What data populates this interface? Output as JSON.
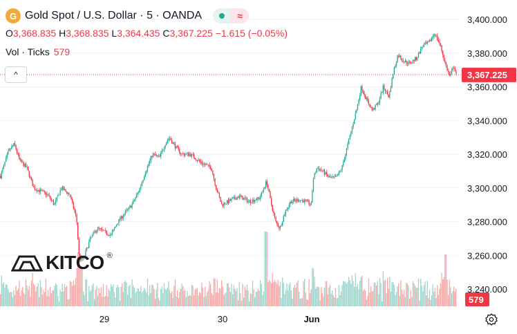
{
  "header": {
    "symbol_icon": "gold-coin-icon",
    "symbol_glyph": "G",
    "title": "Gold Spot / U.S. Dollar · 5 · OANDA",
    "wave_glyph": "≈"
  },
  "ohlc": {
    "o_label": "O",
    "o": "3,368.835",
    "h_label": "H",
    "h": "3,368.835",
    "l_label": "L",
    "l": "3,364.435",
    "c_label": "C",
    "c": "3,367.225",
    "change": "−1.615 (−0.05%)"
  },
  "volume": {
    "label": "Vol · Ticks",
    "value": "579"
  },
  "collapse_glyph": "^",
  "logo": {
    "text": "KITCO",
    "reg": "®"
  },
  "colors": {
    "up": "#22ab94",
    "down": "#f23645",
    "up_vol": "#9ed6cd",
    "down_vol": "#f7a9a7"
  },
  "chart_data": {
    "type": "candlestick",
    "y_ticks": [
      "3,400.000",
      "3,380.000",
      "3,360.000",
      "3,340.000",
      "3,320.000",
      "3,300.000",
      "3,280.000",
      "3,260.000",
      "3,240.000"
    ],
    "y_tick_values": [
      3400,
      3380,
      3360,
      3340,
      3320,
      3300,
      3280,
      3260,
      3240
    ],
    "ylim": [
      3230,
      3405
    ],
    "x_ticks": [
      "29",
      "30",
      "Jun"
    ],
    "last_price_label": "3,367.225",
    "last_price": 3367.225,
    "last_volume_label": "579",
    "price_path": [
      [
        0,
        3307
      ],
      [
        12,
        3322
      ],
      [
        20,
        3326
      ],
      [
        28,
        3316
      ],
      [
        38,
        3312
      ],
      [
        48,
        3300
      ],
      [
        58,
        3298
      ],
      [
        68,
        3296
      ],
      [
        78,
        3290
      ],
      [
        88,
        3300
      ],
      [
        100,
        3296
      ],
      [
        110,
        3282
      ],
      [
        114,
        3258
      ],
      [
        120,
        3258
      ],
      [
        130,
        3270
      ],
      [
        140,
        3276
      ],
      [
        150,
        3274
      ],
      [
        160,
        3272
      ],
      [
        170,
        3280
      ],
      [
        180,
        3285
      ],
      [
        190,
        3290
      ],
      [
        200,
        3298
      ],
      [
        210,
        3310
      ],
      [
        220,
        3320
      ],
      [
        230,
        3318
      ],
      [
        238,
        3326
      ],
      [
        244,
        3330
      ],
      [
        252,
        3325
      ],
      [
        262,
        3320
      ],
      [
        275,
        3320
      ],
      [
        290,
        3315
      ],
      [
        305,
        3312
      ],
      [
        312,
        3300
      ],
      [
        320,
        3290
      ],
      [
        330,
        3292
      ],
      [
        345,
        3295
      ],
      [
        360,
        3292
      ],
      [
        375,
        3294
      ],
      [
        385,
        3304
      ],
      [
        392,
        3290
      ],
      [
        398,
        3280
      ],
      [
        404,
        3276
      ],
      [
        412,
        3286
      ],
      [
        420,
        3292
      ],
      [
        432,
        3293
      ],
      [
        442,
        3292
      ],
      [
        450,
        3290
      ],
      [
        452,
        3305
      ],
      [
        458,
        3312
      ],
      [
        466,
        3310
      ],
      [
        476,
        3306
      ],
      [
        486,
        3306
      ],
      [
        494,
        3312
      ],
      [
        502,
        3325
      ],
      [
        510,
        3338
      ],
      [
        516,
        3348
      ],
      [
        522,
        3360
      ],
      [
        530,
        3352
      ],
      [
        538,
        3346
      ],
      [
        546,
        3350
      ],
      [
        554,
        3360
      ],
      [
        562,
        3354
      ],
      [
        568,
        3368
      ],
      [
        575,
        3379
      ],
      [
        584,
        3375
      ],
      [
        592,
        3374
      ],
      [
        602,
        3377
      ],
      [
        610,
        3384
      ],
      [
        620,
        3386
      ],
      [
        628,
        3392
      ],
      [
        636,
        3385
      ],
      [
        644,
        3373
      ],
      [
        650,
        3366
      ],
      [
        656,
        3372
      ],
      [
        660,
        3367
      ]
    ]
  }
}
